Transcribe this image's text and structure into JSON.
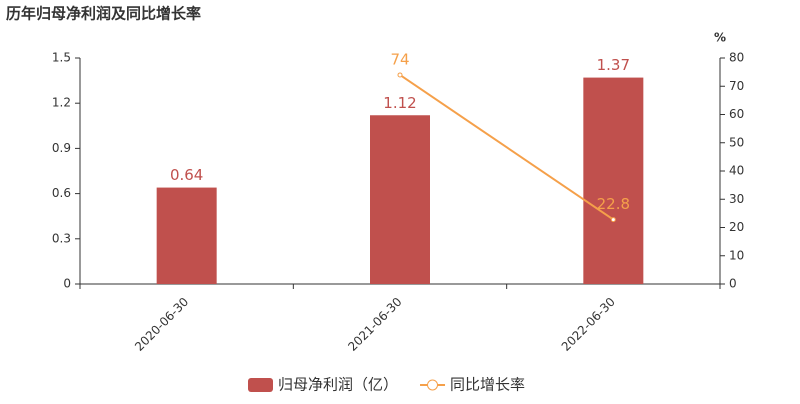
{
  "chart_data": {
    "type": "bar",
    "title": "历年归母净利润及同比增长率",
    "categories": [
      "2020-06-30",
      "2021-06-30",
      "2022-06-30"
    ],
    "series": [
      {
        "name": "归母净利润（亿）",
        "type": "bar",
        "color": "#c0504d",
        "values": [
          0.64,
          1.12,
          1.37
        ]
      },
      {
        "name": "同比增长率",
        "type": "line",
        "axis": "y2",
        "color": "#f5a04a",
        "values": [
          null,
          74,
          22.8
        ]
      }
    ],
    "ylim": [
      0,
      1.5
    ],
    "yticks": [
      0,
      0.3,
      0.6,
      0.9,
      1.2,
      1.5
    ],
    "y2lim": [
      0,
      80
    ],
    "y2ticks": [
      0,
      10,
      20,
      30,
      40,
      50,
      60,
      70,
      80
    ],
    "y2_label": "%",
    "grid": false
  }
}
